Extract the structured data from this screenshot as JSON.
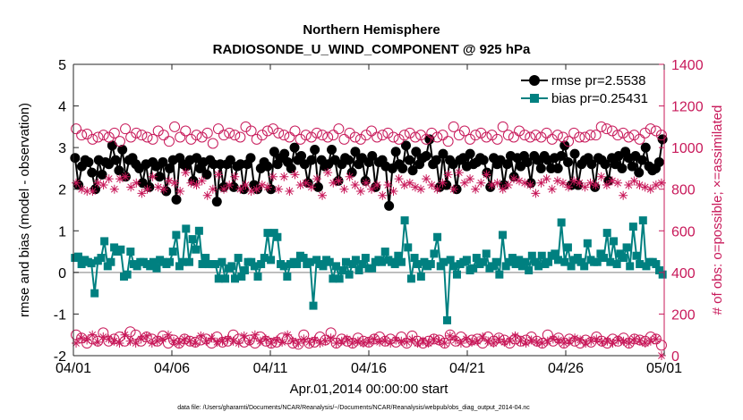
{
  "chart_data": {
    "type": "line",
    "title": "Northern Hemisphere",
    "subtitle": "RADIOSONDE_U_WIND_COMPONENT @ 925 hPa",
    "xlabel": "Apr.01,2014 00:00:00 start",
    "ylabel": "rmse and bias (model - observation)",
    "ylabel_right": "# of obs: o=possible; ×=assimilated",
    "xlim": [
      0,
      30
    ],
    "ylim": [
      -2,
      5
    ],
    "ylim_right": [
      0,
      1400
    ],
    "x_ticks": [
      0,
      5,
      10,
      15,
      20,
      25,
      30
    ],
    "x_tick_labels": [
      "04/01",
      "04/06",
      "04/11",
      "04/16",
      "04/21",
      "04/26",
      "05/01"
    ],
    "y_ticks": [
      -2,
      -1,
      0,
      1,
      2,
      3,
      4,
      5
    ],
    "y_tick_labels": [
      "-2",
      "-1",
      "0",
      "1",
      "2",
      "3",
      "4",
      "5"
    ],
    "y_right_ticks": [
      0,
      200,
      400,
      600,
      800,
      1000,
      1200,
      1400
    ],
    "y_right_tick_labels": [
      "0",
      "200",
      "400",
      "600",
      "800",
      "1000",
      "1200",
      "1400"
    ],
    "legend_position": "top-right",
    "series": [
      {
        "name": "rmse pr=2.5538",
        "axis": "left",
        "color": "#000000",
        "marker": "circle",
        "values": [
          2.75,
          2.1,
          2.55,
          2.7,
          2.65,
          2.4,
          2.0,
          2.7,
          2.35,
          2.65,
          2.6,
          3.05,
          2.7,
          2.45,
          2.95,
          2.3,
          2.7,
          2.75,
          2.6,
          2.5,
          2.15,
          2.6,
          2.05,
          2.65,
          2.55,
          2.3,
          2.65,
          1.95,
          2.5,
          2.7,
          1.75,
          2.75,
          2.6,
          2.55,
          2.7,
          2.2,
          2.75,
          2.5,
          2.65,
          2.35,
          2.7,
          2.6,
          1.7,
          2.6,
          2.05,
          2.6,
          2.7,
          2.05,
          2.55,
          2.6,
          2.0,
          2.6,
          2.75,
          2.1,
          2.0,
          2.5,
          2.65,
          2.55,
          2.0,
          2.9,
          2.6,
          2.75,
          2.85,
          2.65,
          2.5,
          3.0,
          2.7,
          2.8,
          2.6,
          2.15,
          2.7,
          2.95,
          2.05,
          2.7,
          2.55,
          2.6,
          2.95,
          2.7,
          2.2,
          2.6,
          2.75,
          2.7,
          2.4,
          2.9,
          2.6,
          2.75,
          2.2,
          2.65,
          2.8,
          2.05,
          2.65,
          2.7,
          2.55,
          1.6,
          2.5,
          2.9,
          2.6,
          2.5,
          3.05,
          2.7,
          2.45,
          2.9,
          2.6,
          2.75,
          2.8,
          3.2,
          2.6,
          2.7,
          2.05,
          2.85,
          2.1,
          2.7,
          2.6,
          2.0,
          2.7,
          2.75,
          2.55,
          2.85,
          2.6,
          2.65,
          2.75,
          2.7,
          2.4,
          2.05,
          2.75,
          2.6,
          2.7,
          2.1,
          2.6,
          2.8,
          2.3,
          2.75,
          2.55,
          2.8,
          2.65,
          2.15,
          2.8,
          2.7,
          2.5,
          2.8,
          2.7,
          2.5,
          2.75,
          2.5,
          2.8,
          3.05,
          2.65,
          2.1,
          2.85,
          2.1,
          2.6,
          2.7,
          2.75,
          2.6,
          2.05,
          2.75,
          2.7,
          2.6,
          2.2,
          2.75,
          2.6,
          2.8,
          2.5,
          2.9,
          2.75,
          2.55,
          2.8,
          2.4,
          2.7,
          3.0,
          2.55,
          2.45,
          2.5,
          2.65,
          3.2
        ]
      },
      {
        "name": "bias pr=0.25431",
        "axis": "left",
        "color": "#008080",
        "marker": "square",
        "values": [
          0.35,
          0.38,
          0.2,
          0.3,
          0.25,
          0.22,
          -0.5,
          0.28,
          0.35,
          0.75,
          0.15,
          0.25,
          0.6,
          0.5,
          0.55,
          -0.1,
          -0.05,
          0.5,
          0.2,
          0.15,
          0.25,
          0.25,
          0.2,
          0.15,
          0.25,
          0.1,
          0.3,
          0.25,
          0.2,
          0.25,
          0.5,
          0.9,
          0.15,
          0.25,
          1.05,
          0.25,
          0.8,
          0.55,
          1.0,
          0.2,
          0.35,
          0.2,
          0.2,
          0.2,
          -0.15,
          0.25,
          -0.15,
          0.1,
          0.15,
          -0.15,
          0.35,
          -0.1,
          0.05,
          0.25,
          0.25,
          0.15,
          -0.1,
          0.2,
          0.35,
          0.95,
          0.3,
          0.95,
          0.85,
          0.2,
          0.15,
          -0.1,
          0.2,
          0.25,
          0.2,
          0.4,
          0.35,
          0.2,
          0.25,
          -0.8,
          0.3,
          0.2,
          0.15,
          0.3,
          0.25,
          -0.15,
          0.15,
          -0.15,
          0.05,
          0.25,
          -0.05,
          0.2,
          0.3,
          0.05,
          0.2,
          0.35,
          0.1,
          0.1,
          0.25,
          0.3,
          0.25,
          0.5,
          0.3,
          0.25,
          0.2,
          0.4,
          0.25,
          1.25,
          0.6,
          -0.15,
          0.35,
          0.2,
          -0.1,
          0.25,
          0.15,
          0.2,
          0.45,
          0.85,
          0.15,
          0.25,
          -1.15,
          0.3,
          0.15,
          -0.05,
          0.2,
          0.25,
          0.3,
          0.05,
          0.1,
          0.35,
          0.2,
          0.25,
          0.45,
          0.1,
          0.15,
          0.25,
          -0.05,
          0.9,
          0.15,
          0.25,
          0.35,
          0.2,
          0.3,
          0.15,
          0.25,
          0.05,
          0.4,
          0.25,
          0.15,
          0.4,
          0.2,
          0.25,
          0.4,
          0.45,
          0.3,
          1.2,
          0.25,
          0.6,
          0.15,
          0.3,
          0.35,
          0.25,
          0.15,
          0.7,
          0.3,
          0.25,
          0.25,
          0.45,
          0.35,
          0.95,
          0.25,
          0.75,
          0.2,
          0.45,
          0.35,
          0.6,
          0.15,
          1.1,
          0.4,
          0.2,
          1.25,
          0.15,
          0.25,
          0.25,
          0.2,
          0.05,
          -0.05
        ]
      },
      {
        "name": "rmse obs possible",
        "axis": "right",
        "color": "#c8195a",
        "marker": "open-circle",
        "values": [
          1090,
          1060,
          1065,
          1040,
          1050,
          1060,
          1050,
          1070,
          1030,
          1090,
          1050,
          1070,
          1060,
          1050,
          1040,
          1080,
          1060,
          1030,
          1100,
          1050,
          1080,
          1040,
          1060,
          1050,
          1070,
          1020,
          1090,
          1060,
          1070,
          1060,
          1050,
          1100,
          1080,
          1040,
          1060,
          1080,
          1090,
          1070,
          1060,
          1050,
          1080,
          1040,
          1060,
          1050,
          1070,
          1060,
          1050,
          1060,
          1090,
          1040,
          1070,
          1050,
          1040,
          1060,
          1080,
          1050,
          1060,
          1070,
          1050,
          1040,
          1060,
          1070,
          1050,
          1060,
          1040,
          1070,
          1050,
          1060,
          1030,
          1100,
          1060,
          1080,
          1040,
          1060,
          1070,
          1050,
          1060,
          1040,
          1100,
          1060,
          1050,
          1080,
          1060,
          1050,
          1060,
          1050,
          1070,
          1040,
          1060,
          1050,
          1030,
          1070,
          1050,
          1050,
          1060,
          1060,
          1100,
          1090,
          1080,
          1060,
          1070,
          1050,
          1060,
          1040,
          1070,
          1090,
          1080,
          1060
        ]
      },
      {
        "name": "rmse obs assimilated",
        "axis": "right",
        "color": "#c8195a",
        "marker": "asterisk",
        "values": [
          830,
          800,
          790,
          790,
          830,
          820,
          850,
          800,
          850,
          860,
          810,
          830,
          780,
          800,
          860,
          810,
          800,
          840,
          830,
          790,
          880,
          830,
          820,
          840,
          770,
          800,
          870,
          800,
          820,
          860,
          800,
          820,
          790,
          800,
          820,
          810,
          860,
          800,
          860,
          790,
          870,
          820,
          830,
          810,
          850,
          770,
          880,
          830,
          840,
          800,
          860,
          820,
          790,
          830,
          800,
          820,
          770,
          820,
          790,
          850,
          820,
          830,
          810,
          800,
          850,
          820,
          800,
          830,
          870,
          800,
          880,
          830,
          850,
          800,
          830,
          870,
          820,
          830,
          800,
          820,
          850,
          840,
          830,
          820,
          780,
          830,
          850,
          800,
          840,
          830,
          810,
          840,
          830,
          810,
          830,
          820,
          860,
          820,
          840,
          830,
          770,
          820,
          840,
          820,
          810,
          800,
          820,
          830
        ]
      },
      {
        "name": "bias obs possible",
        "axis": "right",
        "color": "#c8195a",
        "marker": "open-circle",
        "values": [
          100,
          85,
          60,
          80,
          70,
          110,
          70,
          80,
          90,
          70,
          115,
          100,
          70,
          90,
          80,
          70,
          95,
          60,
          75,
          60,
          80,
          70,
          65,
          75,
          80,
          60,
          90,
          65,
          70,
          100,
          80,
          65,
          75,
          60,
          90,
          70,
          60,
          65,
          85,
          80,
          60,
          55,
          100,
          60,
          65,
          90,
          75,
          110,
          60,
          80,
          70,
          60,
          85,
          70,
          65,
          80,
          90,
          70,
          80,
          65,
          90,
          60,
          95,
          70,
          60,
          70,
          80,
          75,
          60,
          100,
          70,
          90,
          65,
          75,
          80,
          60,
          90,
          70,
          85,
          75,
          60,
          80,
          70,
          75,
          90,
          70,
          60,
          100,
          70,
          85,
          60,
          80,
          70,
          60,
          75,
          65,
          90,
          70,
          60,
          80,
          70,
          85,
          60,
          80,
          75,
          70,
          90,
          80,
          50
        ]
      },
      {
        "name": "bias obs assimilated",
        "axis": "right",
        "color": "#c8195a",
        "marker": "asterisk",
        "values": [
          60,
          85,
          75,
          100,
          65,
          90,
          80,
          70,
          60,
          100,
          70,
          60,
          80,
          95,
          60,
          70,
          80,
          100,
          70,
          60,
          80,
          70,
          60,
          95,
          70,
          85,
          65,
          70,
          80,
          70,
          60,
          95,
          70,
          100,
          70,
          80,
          60,
          75,
          65,
          100,
          70,
          60,
          80,
          65,
          75,
          60,
          70,
          85,
          60,
          70,
          80,
          60,
          70,
          60,
          65,
          80,
          65,
          70,
          60,
          75,
          70,
          65,
          80,
          60,
          70,
          60,
          80,
          70,
          60,
          95,
          75,
          60,
          80,
          65,
          70,
          90,
          70,
          60,
          80,
          65,
          70,
          95,
          70,
          60,
          75,
          65,
          60,
          70,
          80,
          75,
          60,
          70,
          85,
          75,
          60,
          70,
          80,
          65,
          70,
          60,
          75,
          70,
          60,
          80,
          70,
          60,
          70,
          80,
          0
        ]
      }
    ]
  },
  "footer": {
    "data_file": "data file: /Users/gharamti/Documents/NCAR/Reanalysis/~/Documents/NCAR/Reanalysis/webpub/obs_diag_output_2014-04.nc"
  }
}
